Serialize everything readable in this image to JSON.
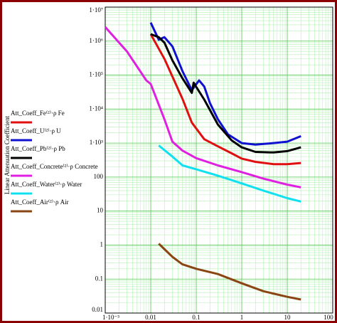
{
  "chart_data": {
    "type": "line",
    "y_label": "Linear Attenuation Coefficient",
    "xlog": true,
    "ylog": true,
    "grid": true,
    "xlim": [
      0.001,
      100
    ],
    "ylim": [
      0.01,
      10000000
    ],
    "xticks": [
      {
        "value": 0.001,
        "label": "1·10⁻³"
      },
      0.01,
      0.1,
      1,
      10,
      100
    ],
    "yticks": [
      0.01,
      0.1,
      1,
      10,
      100,
      {
        "value": 1000,
        "label": "1·10³"
      },
      {
        "value": 10000,
        "label": "1·10⁴"
      },
      {
        "value": 100000,
        "label": "1·10⁵"
      },
      {
        "value": 1000000,
        "label": "1·10⁶"
      },
      {
        "value": 10000000,
        "label": "1·10⁷"
      }
    ],
    "series": [
      {
        "name": "Att_Coeff_Fe⁽²⁾·ρ Fe",
        "color": "#e01010",
        "x": [
          0.01,
          0.02,
          0.05,
          0.08,
          0.15,
          0.3,
          0.6,
          1,
          2,
          5,
          10,
          20
        ],
        "values": [
          1600000,
          300000,
          20000,
          4000,
          1300,
          800,
          500,
          350,
          280,
          240,
          240,
          260
        ]
      },
      {
        "name": "Att_Coeff_U⁽²⁾·ρ U",
        "color": "#1010d0",
        "x": [
          0.01,
          0.015,
          0.02,
          0.03,
          0.05,
          0.08,
          0.1153,
          0.15,
          0.2,
          0.3,
          0.5,
          1,
          2,
          5,
          10,
          20
        ],
        "values": [
          3500000,
          1100000,
          1300000,
          700000,
          130000,
          36000,
          70000,
          46000,
          15000,
          5000,
          1800,
          1000,
          900,
          1000,
          1100,
          1600
        ]
      },
      {
        "name": "Att_Coeff_Pb⁽²⁾·ρ Pb",
        "color": "#000000",
        "x": [
          0.01,
          0.015,
          0.02,
          0.03,
          0.05,
          0.08,
          0.088,
          0.1,
          0.15,
          0.3,
          0.6,
          1,
          2,
          5,
          10,
          20
        ],
        "values": [
          1600000,
          1300000,
          900000,
          270000,
          80000,
          30000,
          60000,
          45000,
          19000,
          3500,
          1200,
          750,
          550,
          530,
          580,
          750
        ]
      },
      {
        "name": "Att_Coeff_Concrete⁽²⁾·ρ Concrete",
        "color": "#e020e0",
        "x": [
          0.001,
          0.003,
          0.008,
          0.01,
          0.02,
          0.03,
          0.05,
          0.1,
          0.3,
          1,
          3,
          10,
          20
        ],
        "values": [
          2600000,
          500000,
          70000,
          55000,
          5000,
          1100,
          600,
          360,
          220,
          140,
          90,
          60,
          50
        ]
      },
      {
        "name": "Att_Coeff_Water⁽²⁾·ρ Water",
        "color": "#10e0f0",
        "x": [
          0.015,
          0.03,
          0.05,
          0.1,
          0.3,
          1,
          3,
          10,
          20
        ],
        "values": [
          850,
          400,
          220,
          170,
          110,
          65,
          40,
          24,
          19
        ]
      },
      {
        "name": "Att_Coeff_Air⁽²⁾·ρ Air",
        "color": "#8b4513",
        "x": [
          0.015,
          0.03,
          0.05,
          0.1,
          0.3,
          1,
          3,
          10,
          20
        ],
        "values": [
          1.1,
          0.45,
          0.27,
          0.2,
          0.14,
          0.075,
          0.044,
          0.03,
          0.025
        ]
      }
    ]
  }
}
